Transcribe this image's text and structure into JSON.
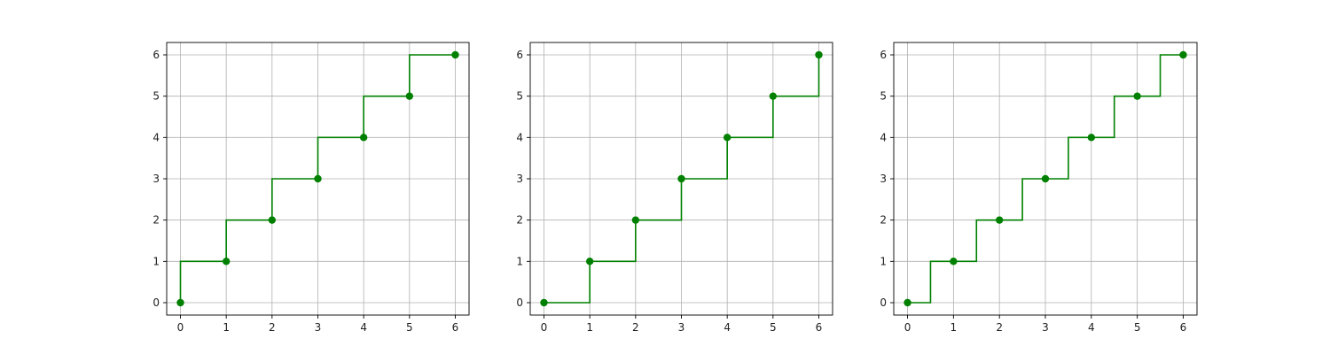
{
  "chart_data": [
    {
      "type": "line",
      "step": "pre",
      "x": [
        0,
        1,
        2,
        3,
        4,
        5,
        6
      ],
      "y": [
        0,
        1,
        2,
        3,
        4,
        5,
        6
      ],
      "xlim": [
        -0.3,
        6.3
      ],
      "ylim": [
        -0.3,
        6.3
      ],
      "xticks": [
        "0",
        "1",
        "2",
        "3",
        "4",
        "5",
        "6"
      ],
      "yticks": [
        "0",
        "1",
        "2",
        "3",
        "4",
        "5",
        "6"
      ],
      "grid": true,
      "markers": true,
      "color": "#008000"
    },
    {
      "type": "line",
      "step": "post",
      "x": [
        0,
        1,
        2,
        3,
        4,
        5,
        6
      ],
      "y": [
        0,
        1,
        2,
        3,
        4,
        5,
        6
      ],
      "xlim": [
        -0.3,
        6.3
      ],
      "ylim": [
        -0.3,
        6.3
      ],
      "xticks": [
        "0",
        "1",
        "2",
        "3",
        "4",
        "5",
        "6"
      ],
      "yticks": [
        "0",
        "1",
        "2",
        "3",
        "4",
        "5",
        "6"
      ],
      "grid": true,
      "markers": true,
      "color": "#008000"
    },
    {
      "type": "line",
      "step": "mid",
      "x": [
        0,
        1,
        2,
        3,
        4,
        5,
        6
      ],
      "y": [
        0,
        1,
        2,
        3,
        4,
        5,
        6
      ],
      "xlim": [
        -0.3,
        6.3
      ],
      "ylim": [
        -0.3,
        6.3
      ],
      "xticks": [
        "0",
        "1",
        "2",
        "3",
        "4",
        "5",
        "6"
      ],
      "yticks": [
        "0",
        "1",
        "2",
        "3",
        "4",
        "5",
        "6"
      ],
      "grid": true,
      "markers": true,
      "color": "#008000"
    }
  ]
}
